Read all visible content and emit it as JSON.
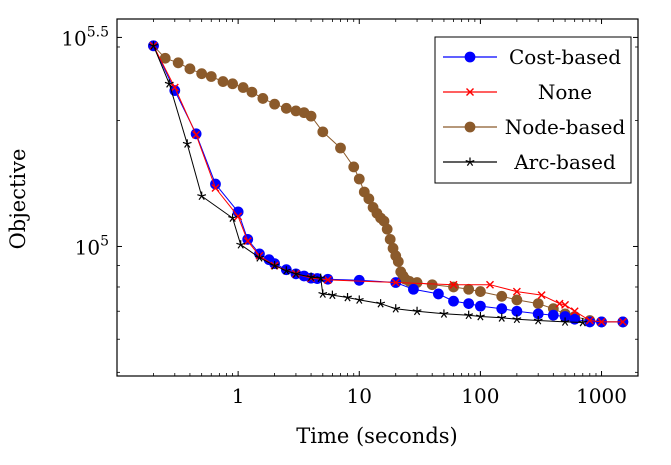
{
  "chart_data": {
    "type": "line",
    "xlabel": "Time (seconds)",
    "ylabel": "Objective",
    "x_scale": "log",
    "y_scale": "log",
    "xlim": [
      0.1,
      2000
    ],
    "ylim": [
      49000,
      350000
    ],
    "xticks": [
      {
        "value": 1,
        "label": "1"
      },
      {
        "value": 10,
        "label": "10"
      },
      {
        "value": 100,
        "label": "100"
      },
      {
        "value": 1000,
        "label": "1000"
      }
    ],
    "yticks": [
      {
        "value": 100000,
        "base": "10",
        "exp": "5"
      },
      {
        "value": 316228,
        "base": "10",
        "exp": "5.5"
      }
    ],
    "legend_position": "top-right",
    "series": [
      {
        "name": "Cost-based",
        "color": "#0000ff",
        "marker": "circle",
        "points": [
          [
            0.2,
            302000
          ],
          [
            0.3,
            236000
          ],
          [
            0.45,
            186000
          ],
          [
            0.65,
            141000
          ],
          [
            1.0,
            121000
          ],
          [
            1.2,
            104000
          ],
          [
            1.5,
            96000
          ],
          [
            1.8,
            93000
          ],
          [
            2.0,
            91000
          ],
          [
            2.5,
            88000
          ],
          [
            3.0,
            86000
          ],
          [
            3.5,
            85000
          ],
          [
            4.0,
            84000
          ],
          [
            4.5,
            83800
          ],
          [
            5.5,
            83500
          ],
          [
            10,
            83000
          ],
          [
            20,
            82000
          ],
          [
            28,
            79000
          ],
          [
            45,
            77000
          ],
          [
            60,
            74000
          ],
          [
            80,
            73000
          ],
          [
            100,
            72000
          ],
          [
            150,
            71000
          ],
          [
            200,
            70000
          ],
          [
            300,
            69000
          ],
          [
            400,
            68500
          ],
          [
            500,
            68000
          ],
          [
            600,
            67000
          ],
          [
            800,
            66000
          ],
          [
            1000,
            66000
          ],
          [
            1500,
            66000
          ]
        ]
      },
      {
        "name": "None",
        "color": "#ff0000",
        "marker": "x",
        "points": [
          [
            0.2,
            302000
          ],
          [
            0.3,
            240000
          ],
          [
            0.45,
            185000
          ],
          [
            0.65,
            138000
          ],
          [
            1.0,
            118000
          ],
          [
            1.2,
            103000
          ],
          [
            1.5,
            95000
          ],
          [
            2.0,
            90000
          ],
          [
            3.0,
            86000
          ],
          [
            4.0,
            84000
          ],
          [
            5.5,
            83200
          ],
          [
            20,
            82000
          ],
          [
            60,
            81000
          ],
          [
            120,
            81000
          ],
          [
            200,
            78000
          ],
          [
            320,
            76500
          ],
          [
            450,
            73000
          ],
          [
            500,
            72500
          ],
          [
            600,
            70000
          ],
          [
            800,
            66500
          ],
          [
            1000,
            66000
          ],
          [
            1500,
            66000
          ]
        ]
      },
      {
        "name": "Node-based",
        "color": "#8b5a2b",
        "marker": "circle",
        "points": [
          [
            0.2,
            302000
          ],
          [
            0.25,
            282000
          ],
          [
            0.32,
            275000
          ],
          [
            0.4,
            266000
          ],
          [
            0.5,
            259000
          ],
          [
            0.6,
            255000
          ],
          [
            0.75,
            248000
          ],
          [
            0.9,
            245000
          ],
          [
            1.1,
            240000
          ],
          [
            1.3,
            234000
          ],
          [
            1.6,
            226000
          ],
          [
            2.0,
            219000
          ],
          [
            2.5,
            214000
          ],
          [
            3.0,
            211000
          ],
          [
            3.5,
            209000
          ],
          [
            4.0,
            205000
          ],
          [
            5.0,
            188000
          ],
          [
            7.0,
            172000
          ],
          [
            9.0,
            155000
          ],
          [
            10,
            145000
          ],
          [
            11,
            135000
          ],
          [
            12,
            130000
          ],
          [
            13,
            124000
          ],
          [
            14,
            120000
          ],
          [
            15,
            117000
          ],
          [
            16,
            115000
          ],
          [
            17,
            110000
          ],
          [
            18,
            104000
          ],
          [
            19,
            99000
          ],
          [
            20,
            95000
          ],
          [
            21,
            92000
          ],
          [
            22,
            87000
          ],
          [
            23,
            85000
          ],
          [
            24,
            83500
          ],
          [
            26,
            82500
          ],
          [
            30,
            82000
          ],
          [
            40,
            81000
          ],
          [
            60,
            80000
          ],
          [
            80,
            79000
          ],
          [
            100,
            78000
          ],
          [
            150,
            76000
          ],
          [
            200,
            74500
          ],
          [
            300,
            73000
          ],
          [
            400,
            71000
          ],
          [
            500,
            69000
          ],
          [
            600,
            68000
          ],
          [
            800,
            66500
          ],
          [
            1000,
            66000
          ],
          [
            1500,
            66000
          ]
        ]
      },
      {
        "name": "Arc-based",
        "color": "#000000",
        "marker": "star",
        "points": [
          [
            0.2,
            302000
          ],
          [
            0.27,
            245000
          ],
          [
            0.38,
            176000
          ],
          [
            0.5,
            132000
          ],
          [
            0.9,
            117000
          ],
          [
            1.05,
            101000
          ],
          [
            1.5,
            94000
          ],
          [
            2.0,
            90000
          ],
          [
            2.5,
            87500
          ],
          [
            3.0,
            86000
          ],
          [
            4.0,
            84500
          ],
          [
            4.8,
            84000
          ],
          [
            5.0,
            77000
          ],
          [
            6.0,
            76500
          ],
          [
            8.0,
            75500
          ],
          [
            10,
            74500
          ],
          [
            15,
            73000
          ],
          [
            20,
            71000
          ],
          [
            30,
            70000
          ],
          [
            50,
            69000
          ],
          [
            80,
            68500
          ],
          [
            100,
            68000
          ],
          [
            150,
            67500
          ],
          [
            200,
            67000
          ],
          [
            300,
            66500
          ],
          [
            500,
            66000
          ],
          [
            700,
            65800
          ]
        ]
      }
    ]
  }
}
